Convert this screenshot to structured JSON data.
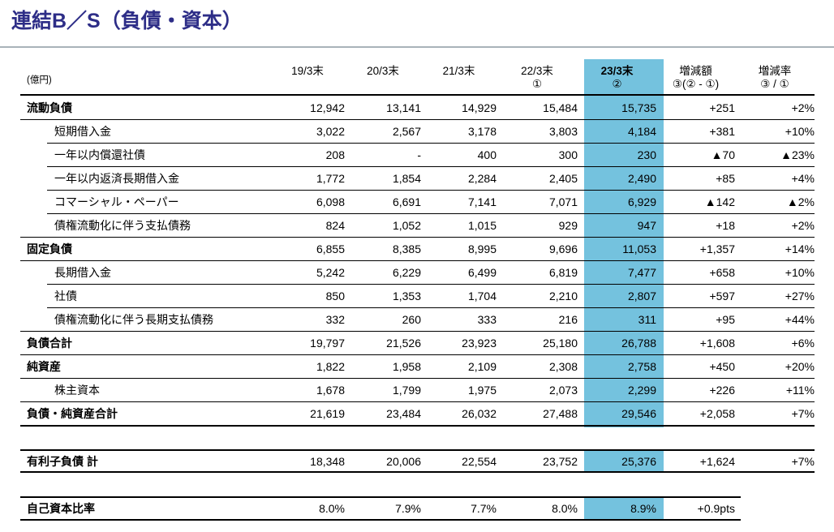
{
  "title": "連結B／S（負債・資本）",
  "unit_label": "(億円)",
  "colors": {
    "title": "#2d2d87",
    "highlight": "#74c2de",
    "rule": "#a9b3b9"
  },
  "columns": [
    {
      "label": "19/3末",
      "sub": ""
    },
    {
      "label": "20/3末",
      "sub": ""
    },
    {
      "label": "21/3末",
      "sub": ""
    },
    {
      "label": "22/3末",
      "sub": "①"
    },
    {
      "label": "23/3末",
      "sub": "②",
      "bold": true,
      "highlight": true
    },
    {
      "label": "増減額",
      "sub": "③(② - ①)"
    },
    {
      "label": "増減率",
      "sub": "③ / ①"
    }
  ],
  "rows": [
    {
      "label": "流動負債",
      "level": "section",
      "values": [
        "12,942",
        "13,141",
        "14,929",
        "15,484",
        "15,735",
        "+251",
        "+2%"
      ]
    },
    {
      "label": "短期借入金",
      "level": "sub",
      "values": [
        "3,022",
        "2,567",
        "3,178",
        "3,803",
        "4,184",
        "+381",
        "+10%"
      ]
    },
    {
      "label": "一年以内償還社債",
      "level": "sub",
      "values": [
        "208",
        "-",
        "400",
        "300",
        "230",
        "▲70",
        "▲23%"
      ]
    },
    {
      "label": "一年以内返済長期借入金",
      "level": "sub",
      "values": [
        "1,772",
        "1,854",
        "2,284",
        "2,405",
        "2,490",
        "+85",
        "+4%"
      ]
    },
    {
      "label": "コマーシャル・ペーパー",
      "level": "sub",
      "values": [
        "6,098",
        "6,691",
        "7,141",
        "7,071",
        "6,929",
        "▲142",
        "▲2%"
      ]
    },
    {
      "label": "債権流動化に伴う支払債務",
      "level": "sub",
      "values": [
        "824",
        "1,052",
        "1,015",
        "929",
        "947",
        "+18",
        "+2%"
      ]
    },
    {
      "label": "固定負債",
      "level": "section",
      "values": [
        "6,855",
        "8,385",
        "8,995",
        "9,696",
        "11,053",
        "+1,357",
        "+14%"
      ]
    },
    {
      "label": "長期借入金",
      "level": "sub",
      "values": [
        "5,242",
        "6,229",
        "6,499",
        "6,819",
        "7,477",
        "+658",
        "+10%"
      ]
    },
    {
      "label": "社債",
      "level": "sub",
      "values": [
        "850",
        "1,353",
        "1,704",
        "2,210",
        "2,807",
        "+597",
        "+27%"
      ]
    },
    {
      "label": "債権流動化に伴う長期支払債務",
      "level": "sub",
      "values": [
        "332",
        "260",
        "333",
        "216",
        "311",
        "+95",
        "+44%"
      ]
    },
    {
      "label": "負債合計",
      "level": "section",
      "values": [
        "19,797",
        "21,526",
        "23,923",
        "25,180",
        "26,788",
        "+1,608",
        "+6%"
      ]
    },
    {
      "label": "純資産",
      "level": "section",
      "values": [
        "1,822",
        "1,958",
        "2,109",
        "2,308",
        "2,758",
        "+450",
        "+20%"
      ]
    },
    {
      "label": "株主資本",
      "level": "sub",
      "values": [
        "1,678",
        "1,799",
        "1,975",
        "2,073",
        "2,299",
        "+226",
        "+11%"
      ]
    },
    {
      "label": "負債・純資産合計",
      "level": "section",
      "values": [
        "21,619",
        "23,484",
        "26,032",
        "27,488",
        "29,546",
        "+2,058",
        "+7%"
      ]
    }
  ],
  "interest_row": {
    "label": "有利子負債 計",
    "values": [
      "18,348",
      "20,006",
      "22,554",
      "23,752",
      "25,376",
      "+1,624",
      "+7%"
    ]
  },
  "equity_row": {
    "label": "自己資本比率",
    "values": [
      "8.0%",
      "7.9%",
      "7.7%",
      "8.0%",
      "8.9%",
      "+0.9pts"
    ]
  }
}
